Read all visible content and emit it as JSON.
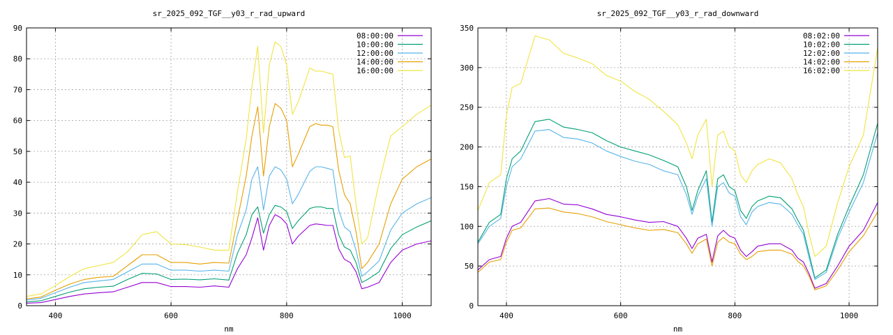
{
  "chart_data": [
    {
      "type": "line",
      "title": "sr_2025_092_TGF__y03_r_rad_upward",
      "xlabel": "nm",
      "ylabel": "",
      "xlim": [
        350,
        1050
      ],
      "ylim": [
        0,
        90
      ],
      "xticks": [
        400,
        600,
        800,
        1000
      ],
      "yticks": [
        0,
        10,
        20,
        30,
        40,
        50,
        60,
        70,
        80,
        90
      ],
      "grid": true,
      "legend": "top-right",
      "x": [
        350,
        375,
        400,
        425,
        450,
        475,
        500,
        525,
        550,
        575,
        600,
        625,
        650,
        675,
        700,
        715,
        730,
        740,
        750,
        760,
        770,
        780,
        790,
        800,
        810,
        820,
        840,
        850,
        860,
        870,
        880,
        890,
        900,
        910,
        920,
        930,
        940,
        960,
        980,
        1000,
        1025,
        1050
      ],
      "series": [
        {
          "name": "08:00:00",
          "color": "#9400d3",
          "values": [
            0.8,
            1.0,
            2.0,
            3.0,
            3.8,
            4.2,
            4.5,
            6.0,
            7.5,
            7.5,
            6.2,
            6.2,
            6.0,
            6.4,
            6.0,
            12.0,
            16.5,
            22.0,
            28.5,
            18.0,
            26.0,
            29.5,
            28.5,
            26.5,
            20.0,
            22.5,
            26.0,
            26.5,
            26.3,
            26.0,
            26.0,
            18.5,
            15.0,
            14.0,
            11.0,
            5.5,
            6.0,
            7.5,
            14.0,
            18.0,
            20.0,
            21.0
          ]
        },
        {
          "name": "10:00:00",
          "color": "#009e73",
          "values": [
            1.2,
            1.6,
            3.0,
            4.4,
            5.5,
            6.0,
            6.3,
            8.5,
            10.5,
            10.3,
            8.5,
            8.6,
            8.4,
            8.7,
            8.3,
            17.0,
            23.0,
            29.5,
            32.0,
            23.5,
            29.5,
            32.5,
            32.0,
            30.5,
            25.0,
            27.5,
            31.5,
            32.0,
            32.0,
            31.5,
            31.5,
            23.0,
            19.0,
            18.0,
            14.0,
            7.5,
            8.5,
            11.0,
            18.5,
            23.0,
            25.5,
            27.5
          ]
        },
        {
          "name": "12:00:00",
          "color": "#56b4e9",
          "values": [
            1.8,
            2.4,
            4.2,
            6.0,
            7.5,
            8.0,
            8.5,
            11.0,
            13.5,
            13.5,
            11.5,
            11.5,
            11.2,
            11.5,
            11.2,
            23.0,
            31.0,
            41.0,
            45.0,
            31.0,
            42.0,
            45.0,
            44.0,
            41.0,
            33.0,
            36.0,
            43.5,
            45.0,
            45.0,
            44.5,
            44.0,
            31.0,
            25.5,
            24.0,
            18.0,
            9.5,
            11.0,
            14.5,
            24.5,
            30.0,
            33.0,
            35.0
          ]
        },
        {
          "name": "14:00:00",
          "color": "#e69f00",
          "values": [
            2.2,
            2.8,
            5.0,
            7.0,
            8.5,
            9.2,
            9.5,
            13.0,
            16.5,
            16.5,
            14.0,
            14.0,
            13.5,
            14.0,
            13.8,
            28.0,
            42.0,
            55.0,
            64.5,
            42.0,
            58.0,
            65.5,
            64.0,
            60.0,
            45.0,
            49.0,
            58.0,
            59.0,
            58.5,
            58.5,
            58.0,
            44.0,
            36.0,
            33.0,
            24.0,
            12.0,
            14.0,
            20.0,
            33.0,
            41.0,
            45.0,
            47.5
          ]
        },
        {
          "name": "16:00:00",
          "color": "#f0e442",
          "values": [
            3.0,
            3.8,
            6.5,
            9.5,
            12.0,
            13.0,
            14.0,
            17.5,
            23.0,
            24.0,
            20.0,
            19.8,
            19.0,
            18.0,
            18.0,
            37.0,
            54.0,
            71.0,
            84.0,
            56.0,
            78.0,
            85.5,
            84.0,
            78.0,
            62.0,
            66.0,
            77.0,
            76.0,
            76.0,
            75.5,
            75.0,
            57.0,
            48.0,
            48.5,
            33.0,
            20.0,
            22.0,
            40.0,
            55.0,
            58.0,
            62.0,
            65.0
          ]
        }
      ]
    },
    {
      "type": "line",
      "title": "sr_2025_092_TGF__y03_r_rad_downward",
      "xlabel": "nm",
      "ylabel": "",
      "xlim": [
        350,
        1050
      ],
      "ylim": [
        0,
        350
      ],
      "xticks": [
        400,
        600,
        800,
        1000
      ],
      "yticks": [
        0,
        50,
        100,
        150,
        200,
        250,
        300,
        350
      ],
      "grid": true,
      "legend": "top-right",
      "x": [
        350,
        370,
        390,
        400,
        410,
        425,
        450,
        475,
        500,
        525,
        550,
        575,
        600,
        625,
        650,
        675,
        700,
        715,
        725,
        735,
        750,
        760,
        770,
        780,
        790,
        800,
        810,
        820,
        830,
        840,
        860,
        880,
        900,
        910,
        920,
        930,
        940,
        960,
        980,
        1000,
        1025,
        1050
      ],
      "series": [
        {
          "name": "08:02:00",
          "color": "#9400d3",
          "values": [
            45,
            58,
            62,
            85,
            100,
            105,
            132,
            135,
            128,
            127,
            122,
            115,
            112,
            108,
            105,
            106,
            100,
            85,
            72,
            85,
            90,
            55,
            88,
            95,
            88,
            85,
            70,
            62,
            68,
            75,
            78,
            78,
            70,
            60,
            55,
            40,
            22,
            28,
            50,
            75,
            95,
            130
          ]
        },
        {
          "name": "10:02:00",
          "color": "#009e73",
          "values": [
            80,
            105,
            115,
            160,
            185,
            195,
            232,
            235,
            225,
            222,
            218,
            208,
            200,
            195,
            190,
            183,
            175,
            150,
            120,
            145,
            170,
            105,
            160,
            165,
            150,
            145,
            120,
            110,
            125,
            132,
            138,
            136,
            122,
            108,
            95,
            65,
            35,
            45,
            90,
            125,
            165,
            230
          ]
        },
        {
          "name": "12:02:00",
          "color": "#56b4e9",
          "values": [
            78,
            100,
            110,
            150,
            175,
            185,
            220,
            222,
            212,
            210,
            205,
            195,
            188,
            182,
            178,
            170,
            165,
            140,
            115,
            138,
            160,
            100,
            150,
            155,
            142,
            138,
            112,
            102,
            118,
            125,
            130,
            128,
            115,
            102,
            90,
            60,
            33,
            42,
            85,
            118,
            155,
            218
          ]
        },
        {
          "name": "14:02:00",
          "color": "#e69f00",
          "values": [
            42,
            55,
            58,
            80,
            95,
            98,
            122,
            123,
            118,
            116,
            112,
            106,
            102,
            98,
            95,
            96,
            92,
            78,
            66,
            78,
            84,
            50,
            80,
            86,
            80,
            78,
            65,
            58,
            62,
            68,
            70,
            70,
            65,
            56,
            50,
            37,
            20,
            25,
            45,
            68,
            88,
            118
          ]
        },
        {
          "name": "16:02:00",
          "color": "#f0e442",
          "values": [
            120,
            155,
            165,
            240,
            275,
            280,
            340,
            335,
            318,
            312,
            305,
            290,
            283,
            270,
            260,
            245,
            228,
            205,
            185,
            215,
            235,
            150,
            215,
            220,
            200,
            195,
            165,
            155,
            170,
            178,
            185,
            180,
            160,
            140,
            125,
            90,
            62,
            75,
            130,
            175,
            215,
            325
          ]
        }
      ]
    }
  ]
}
